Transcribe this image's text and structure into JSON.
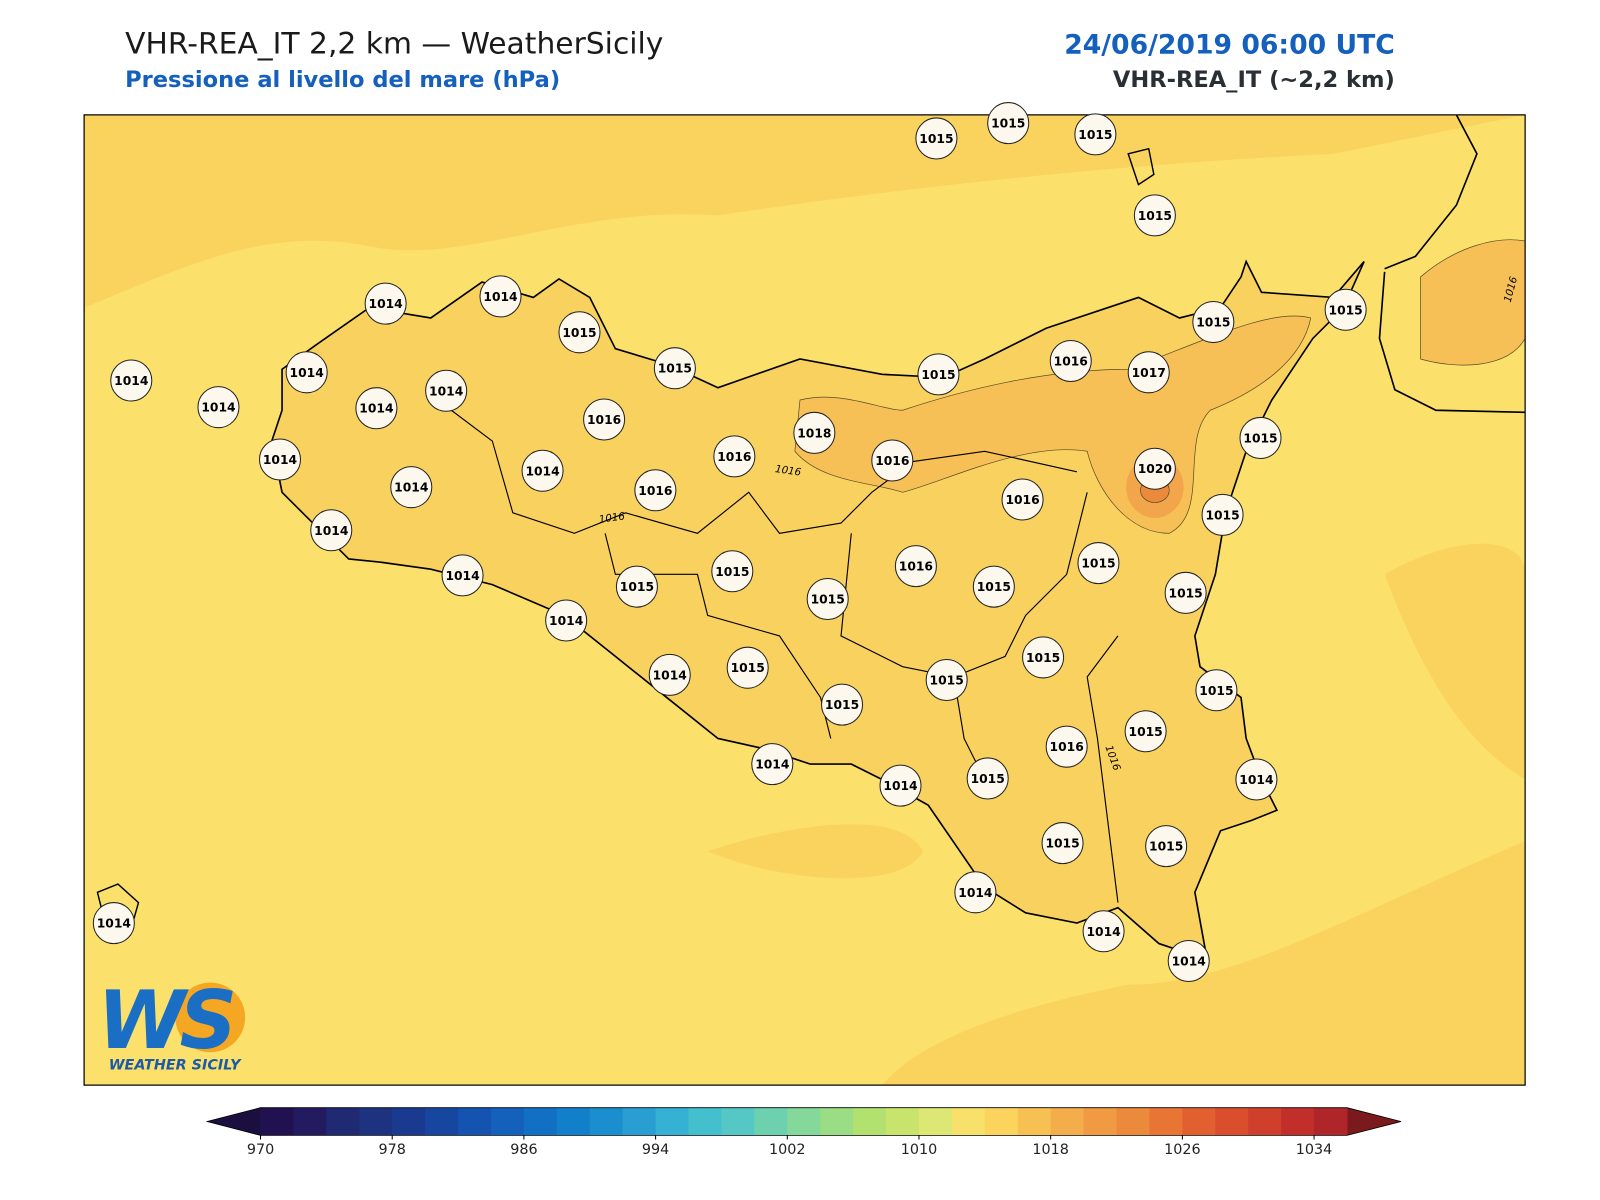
{
  "header": {
    "title": "VHR-REA_IT 2,2 km — WeatherSicily",
    "subtitle": "Pressione al livello del mare (hPa)",
    "date": "24/06/2019 06:00 UTC",
    "model": "VHR-REA_IT (~2,2 km)"
  },
  "stations": [
    1015,
    1015,
    1015,
    1015,
    1014,
    1014,
    1015,
    1015,
    1014,
    1014,
    1014,
    1014,
    1014,
    1016,
    1015,
    1015,
    1016,
    1017,
    1015,
    1018,
    1016,
    1016,
    1015,
    1020,
    1014,
    1014,
    1014,
    1016,
    1016,
    1015,
    1014,
    1015,
    1016,
    1015,
    1014,
    1015,
    1015,
    1015,
    1015,
    1014,
    1015,
    1014,
    1015,
    1015,
    1015,
    1015,
    1015,
    1016,
    1014,
    1015,
    1014,
    1014,
    1015,
    1015,
    1014,
    1014,
    1014,
    1014
  ],
  "contour_labels": [
    "1016",
    "1016",
    "1016",
    "1016"
  ],
  "logo": {
    "letters": "WS",
    "name": "WEATHER SICILY"
  },
  "colorbar": {
    "range": [
      970,
      1036
    ],
    "ticks": [
      970,
      978,
      986,
      994,
      1002,
      1010,
      1018,
      1026,
      1034
    ],
    "colors": [
      "#221150",
      "#241a60",
      "#1f2a73",
      "#1e3380",
      "#1a3a8f",
      "#1746a0",
      "#1553b0",
      "#1461bb",
      "#1270c4",
      "#127fcb",
      "#1b8ecf",
      "#2a9ed3",
      "#35b1d4",
      "#43bfce",
      "#55c8c5",
      "#6dd1b0",
      "#84d99a",
      "#9bdd84",
      "#b3e16f",
      "#c9e46c",
      "#dde774",
      "#f7e16a",
      "#fbd35d",
      "#f6c053",
      "#f4ad4b",
      "#f19a44",
      "#ec8a3c",
      "#e87534",
      "#e25f2f",
      "#da4e2e",
      "#cf3f2c",
      "#c22f2b",
      "#b0252a"
    ],
    "under": "#1a0f3f",
    "over": "#7a1a1c"
  }
}
